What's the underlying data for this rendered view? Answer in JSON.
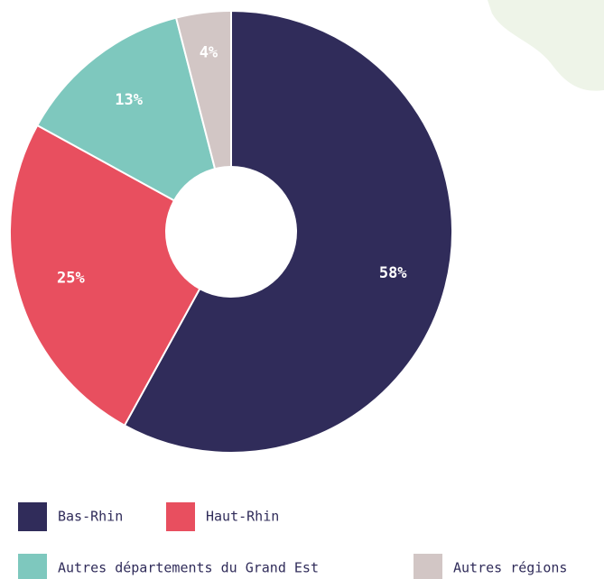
{
  "chart_data": {
    "type": "pie",
    "categories": [
      "Bas-Rhin",
      "Haut-Rhin",
      "Autres départements du Grand Est",
      "Autres régions"
    ],
    "values": [
      58,
      25,
      13,
      4
    ],
    "value_labels": [
      "58%",
      "25%",
      "13%",
      "4%"
    ],
    "colors": [
      "#302c5a",
      "#e84f5f",
      "#7ec8be",
      "#d2c6c5"
    ]
  }
}
